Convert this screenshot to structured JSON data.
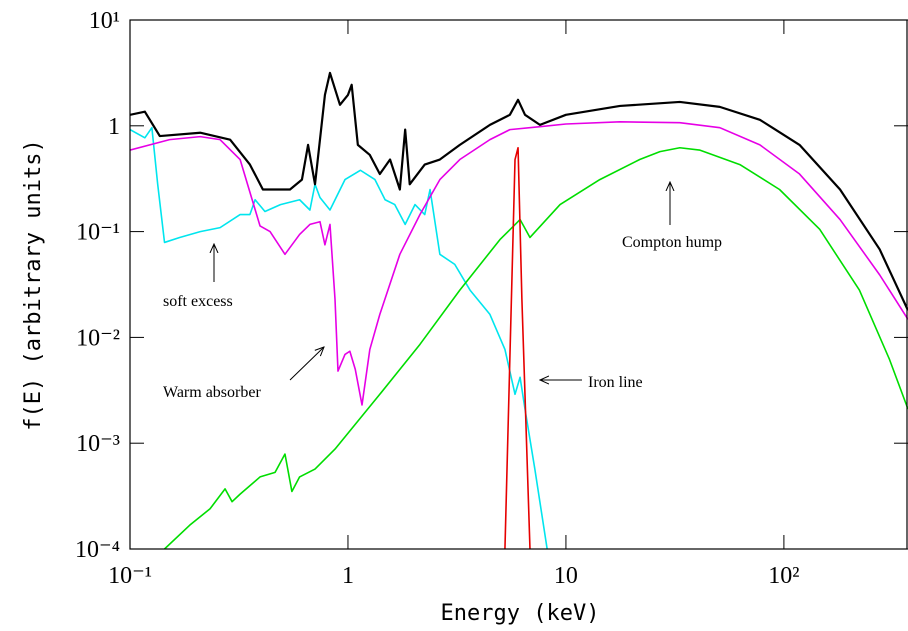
{
  "chart_data": {
    "type": "line",
    "xlabel": "Energy (keV)",
    "ylabel": "f(E) (arbitrary units)",
    "xscale": "log",
    "yscale": "log",
    "xlim": [
      0.1,
      371
    ],
    "ylim": [
      0.0001,
      10
    ],
    "xticks": [
      {
        "value": 0.1,
        "label": "10⁻¹"
      },
      1,
      10,
      {
        "value": 100,
        "label": "10²"
      }
    ],
    "yticks": [
      {
        "value": 0.0001,
        "label": "10⁻⁴"
      },
      {
        "value": 0.001,
        "label": "10⁻³"
      },
      {
        "value": 0.01,
        "label": "10⁻²"
      },
      {
        "value": 0.1,
        "label": "10⁻¹"
      },
      1,
      {
        "value": 10,
        "label": "10¹"
      }
    ],
    "annotations": [
      "soft excess",
      "Warm absorber",
      "Iron line",
      "Compton hump"
    ],
    "series": [
      {
        "color": "#00e5ee",
        "x": [
          0.1,
          0.117,
          0.126,
          0.134,
          0.144,
          0.169,
          0.21,
          0.259,
          0.32,
          0.355,
          0.375,
          0.416,
          0.49,
          0.6,
          0.669,
          0.706,
          0.744,
          0.827,
          0.969,
          1.14,
          1.33,
          1.48,
          1.64,
          1.83,
          2.03,
          2.25,
          2.38,
          2.64,
          3.09,
          3.63,
          4.48,
          5.25,
          5.84,
          6.16,
          6.49,
          7.2,
          8.2
        ],
        "values": [
          0.92,
          0.77,
          0.96,
          0.28,
          0.079,
          0.088,
          0.1,
          0.109,
          0.145,
          0.145,
          0.2,
          0.155,
          0.18,
          0.2,
          0.16,
          0.28,
          0.21,
          0.16,
          0.31,
          0.38,
          0.31,
          0.2,
          0.18,
          0.117,
          0.18,
          0.145,
          0.25,
          0.061,
          0.049,
          0.028,
          0.0165,
          0.0077,
          0.0029,
          0.0042,
          0.0021,
          0.00057,
          0.0001
        ]
      },
      {
        "color": "#e600e6",
        "x": [
          0.1,
          0.152,
          0.21,
          0.259,
          0.32,
          0.395,
          0.439,
          0.514,
          0.6,
          0.669,
          0.744,
          0.784,
          0.827,
          0.872,
          0.9,
          0.969,
          1.02,
          1.08,
          1.16,
          1.26,
          1.4,
          1.73,
          2.14,
          2.64,
          3.26,
          4.48,
          5.53,
          7.6,
          10,
          17.7,
          33.3,
          50.8,
          77.6,
          118,
          181,
          275,
          371
        ],
        "values": [
          0.59,
          0.74,
          0.79,
          0.74,
          0.48,
          0.113,
          0.1,
          0.061,
          0.094,
          0.117,
          0.124,
          0.075,
          0.117,
          0.023,
          0.0048,
          0.0069,
          0.0074,
          0.005,
          0.0023,
          0.0077,
          0.0165,
          0.061,
          0.145,
          0.31,
          0.48,
          0.74,
          0.92,
          0.98,
          1.04,
          1.09,
          1.07,
          0.96,
          0.66,
          0.35,
          0.13,
          0.039,
          0.0148
        ]
      },
      {
        "color": "#00dd00",
        "x": [
          0.144,
          0.188,
          0.233,
          0.273,
          0.294,
          0.32,
          0.395,
          0.463,
          0.514,
          0.553,
          0.6,
          0.706,
          0.872,
          1.4,
          2.14,
          3.26,
          4.98,
          6.16,
          6.84,
          9.4,
          14.3,
          21.8,
          27,
          33.3,
          41,
          62.8,
          95.5,
          146,
          222,
          305,
          371
        ],
        "values": [
          0.0001,
          0.000168,
          0.00024,
          0.00037,
          0.00028,
          0.00033,
          0.00048,
          0.00053,
          0.00079,
          0.00035,
          0.00048,
          0.00057,
          0.00088,
          0.0029,
          0.0086,
          0.028,
          0.084,
          0.13,
          0.088,
          0.18,
          0.31,
          0.48,
          0.57,
          0.62,
          0.59,
          0.43,
          0.25,
          0.105,
          0.028,
          0.0062,
          0.0021
        ]
      },
      {
        "color": "#e60000",
        "x": [
          5.25,
          5.84,
          6.03,
          6.28,
          6.84
        ],
        "values": [
          0.0001,
          0.48,
          0.62,
          0.023,
          0.0001
        ]
      },
      {
        "color": "#000000",
        "x": [
          0.1,
          0.117,
          0.137,
          0.21,
          0.288,
          0.355,
          0.407,
          0.542,
          0.615,
          0.656,
          0.706,
          0.744,
          0.784,
          0.827,
          0.919,
          1,
          1.04,
          1.11,
          1.26,
          1.4,
          1.56,
          1.73,
          1.83,
          1.92,
          2.25,
          2.64,
          3.26,
          4.48,
          5.53,
          6.03,
          6.49,
          7.6,
          10,
          17.7,
          33.3,
          50.8,
          77.6,
          118,
          181,
          275,
          371
        ],
        "values": [
          1.27,
          1.36,
          0.8,
          0.86,
          0.74,
          0.43,
          0.25,
          0.25,
          0.31,
          0.66,
          0.28,
          0.74,
          1.96,
          3.16,
          1.58,
          1.96,
          2.44,
          0.66,
          0.53,
          0.35,
          0.48,
          0.25,
          0.92,
          0.28,
          0.43,
          0.48,
          0.66,
          1.02,
          1.27,
          1.76,
          1.27,
          1.02,
          1.27,
          1.54,
          1.68,
          1.51,
          1.14,
          0.66,
          0.25,
          0.068,
          0.018
        ]
      }
    ]
  }
}
